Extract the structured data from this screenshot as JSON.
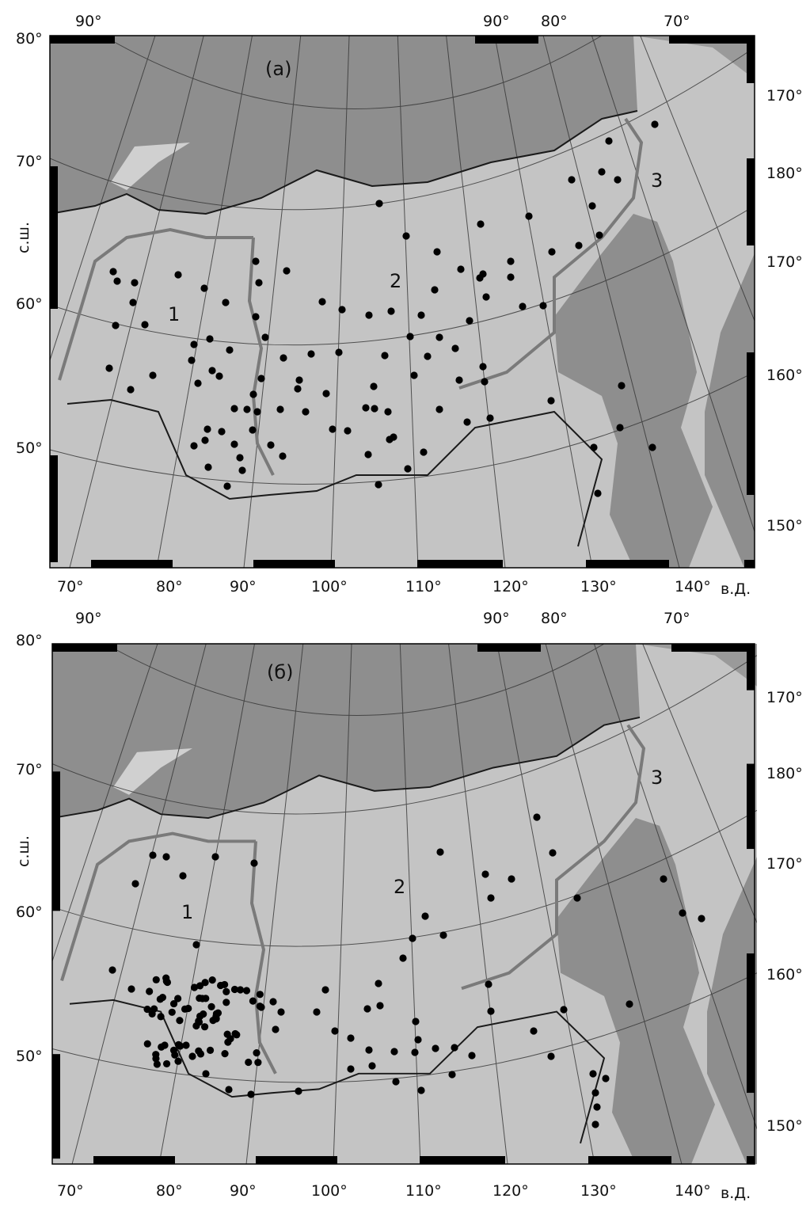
{
  "colors": {
    "land": "#c4c4c4",
    "ocean": "#8e8e8e",
    "region_boundary": "#7a7a7a",
    "border": "#1a1a1a",
    "station": "#000000"
  },
  "axes": {
    "lat_unit_label": "с.ш.",
    "lon_unit_label": "в.Д.",
    "top_lon_labels": [
      "90°",
      "90°",
      "80°",
      "70°"
    ],
    "left_lat_labels": [
      "80°",
      "70°",
      "60°",
      "50°"
    ],
    "right_lon_labels": [
      "170°",
      "180°",
      "170°",
      "160°",
      "150°"
    ],
    "bottom_lon_labels": [
      "70°",
      "80°",
      "90°",
      "100°",
      "110°",
      "120°",
      "130°",
      "140°"
    ]
  },
  "panels": [
    {
      "title": "(a)",
      "regions": [
        "1",
        "2",
        "3"
      ]
    },
    {
      "title": "(б)",
      "regions": [
        "1",
        "2",
        "3"
      ]
    }
  ]
}
